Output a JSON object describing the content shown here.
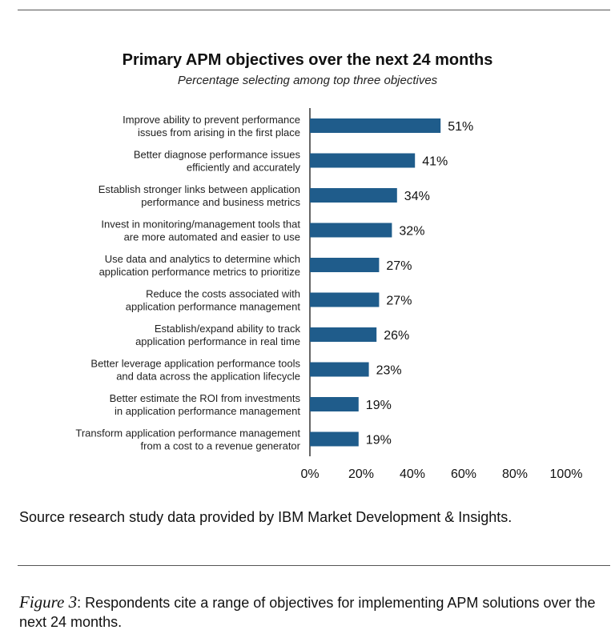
{
  "chart_data": {
    "type": "bar",
    "orientation": "horizontal",
    "title": "Primary APM objectives over the next 24 months",
    "subtitle": "Percentage selecting among top three objectives",
    "categories": [
      [
        "Improve ability to prevent performance",
        "issues from arising in the first place"
      ],
      [
        "Better diagnose performance issues",
        "efficiently and accurately"
      ],
      [
        "Establish stronger links between application",
        "performance and business metrics"
      ],
      [
        "Invest in monitoring/management tools that",
        "are more automated and easier to use"
      ],
      [
        "Use data and analytics to determine which",
        "application performance metrics to prioritize"
      ],
      [
        "Reduce the costs associated with",
        "application performance management"
      ],
      [
        "Establish/expand ability to track",
        "application performance in real time"
      ],
      [
        "Better leverage application performance tools",
        "and data across the application lifecycle"
      ],
      [
        "Better estimate the ROI from investments",
        "in application performance management"
      ],
      [
        "Transform application performance management",
        "from a cost to a revenue generator"
      ]
    ],
    "values": [
      51,
      41,
      34,
      32,
      27,
      27,
      26,
      23,
      19,
      19
    ],
    "value_labels": [
      "51%",
      "41%",
      "34%",
      "32%",
      "27%",
      "27%",
      "26%",
      "23%",
      "19%",
      "19%"
    ],
    "xlim": [
      0,
      100
    ],
    "x_ticks": [
      "0%",
      "20%",
      "40%",
      "60%",
      "80%",
      "100%"
    ],
    "x_tick_values": [
      0,
      20,
      40,
      60,
      80,
      100
    ],
    "bar_color": "#1f5c8b",
    "grid": false
  },
  "source_note": "Source research study data provided by IBM Market Development & Insights.",
  "caption": {
    "figure_label": "Figure 3",
    "text": ": Respondents cite a range of objectives for implementing APM solutions over the next 24 months."
  }
}
